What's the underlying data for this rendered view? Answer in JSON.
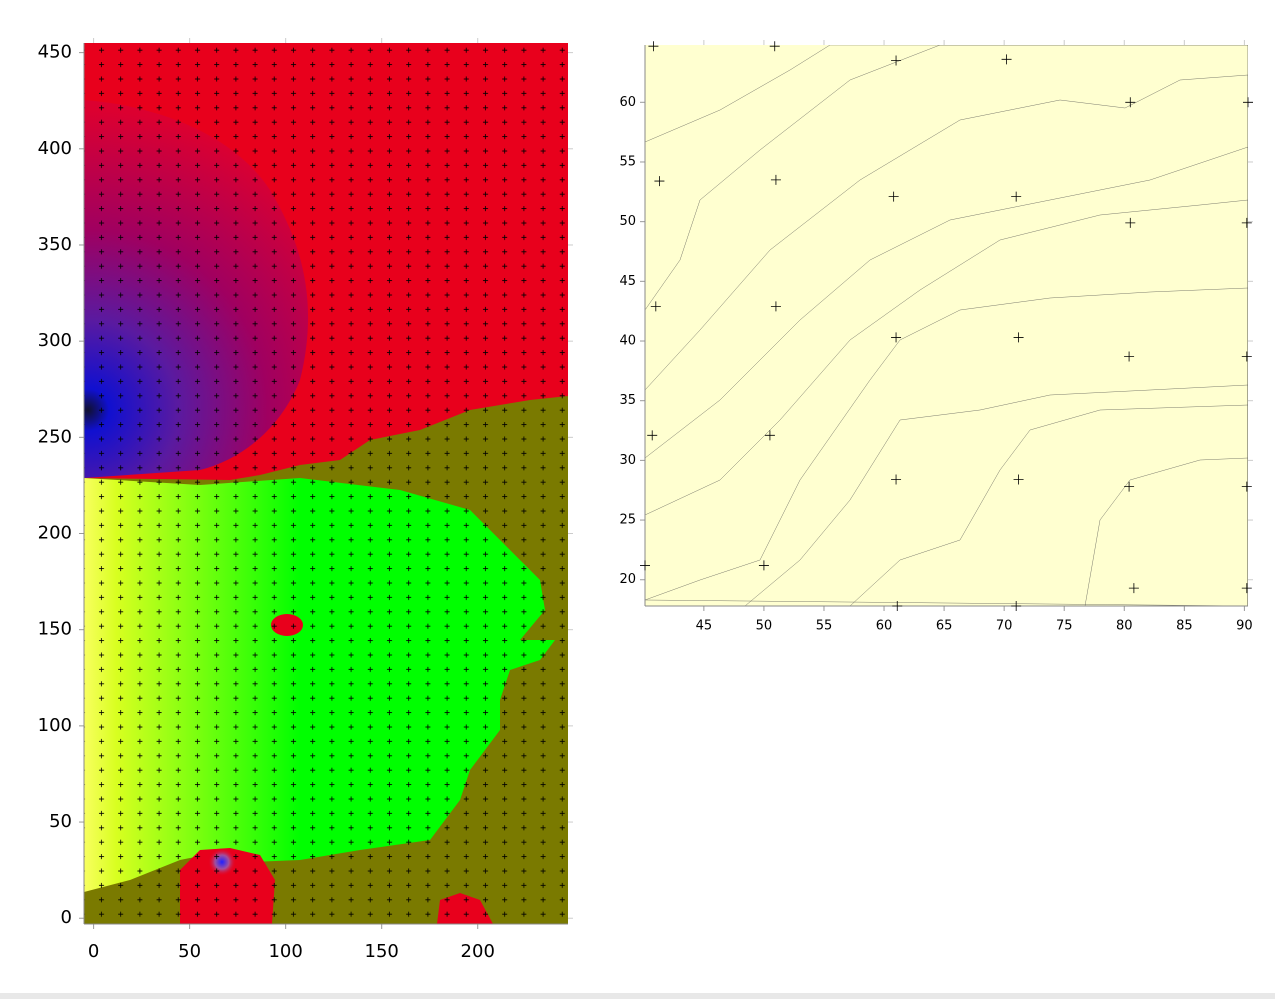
{
  "chart_data": [
    {
      "type": "contour",
      "xlim": [
        -5,
        247
      ],
      "ylim": [
        -3,
        455
      ],
      "xticks": [
        0,
        50,
        100,
        150,
        200
      ],
      "yticks": [
        0,
        50,
        100,
        150,
        200,
        250,
        300,
        350,
        400,
        450
      ]
    },
    {
      "type": "contour",
      "xlim": [
        40.1,
        90.3
      ],
      "ylim": [
        17.8,
        64.8
      ],
      "xticks": [
        45,
        50,
        55,
        60,
        65,
        70,
        75,
        80,
        85,
        90
      ],
      "yticks": [
        20,
        25,
        30,
        35,
        40,
        45,
        50,
        55,
        60
      ],
      "x": [
        40.8,
        50.9,
        61,
        70.2,
        80.5,
        90.3,
        41.3,
        51,
        60.8,
        71,
        80.5,
        90.2,
        41,
        51,
        61,
        71.2,
        80.4,
        90.2,
        40.7,
        50.5,
        61,
        71.2,
        80.4,
        90.2,
        40.1,
        50,
        61.1,
        71,
        80.8,
        90.2
      ],
      "y": [
        64.7,
        64.7,
        63.5,
        63.6,
        60,
        60,
        53.4,
        53.5,
        52.1,
        52.1,
        49.9,
        49.9,
        42.9,
        42.9,
        40.3,
        40.3,
        38.7,
        38.7,
        32.1,
        32.1,
        28.4,
        28.4,
        27.8,
        27.8,
        21.2,
        21.2,
        17.8,
        17.8,
        19.3,
        19.3
      ]
    }
  ]
}
